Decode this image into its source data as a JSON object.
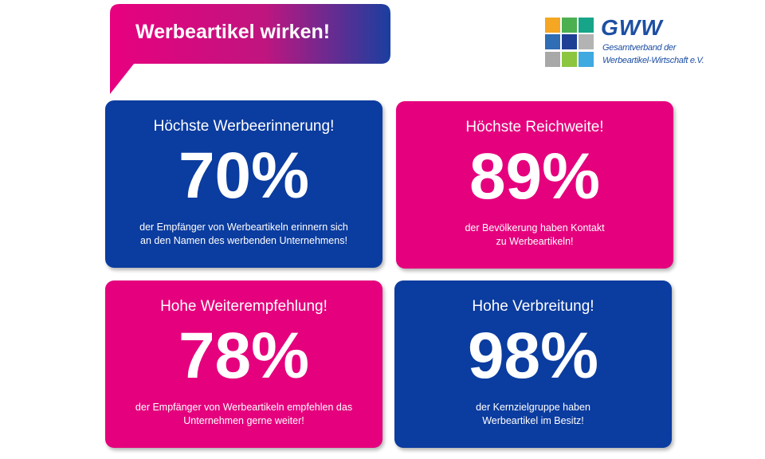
{
  "header": {
    "title": "Werbeartikel wirken!"
  },
  "logo": {
    "name": "GWW",
    "subtitle_lines": [
      "Gesamtverband der",
      "Werbeartikel-Wirtschaft e.V."
    ]
  },
  "cards": [
    {
      "heading": "Höchste Werbeerinnerung!",
      "stat": "70%",
      "lines": [
        "der Empfänger von Werbeartikeln erinnern sich",
        "an den Namen des werbenden Unternehmens!"
      ]
    },
    {
      "heading": "Höchste Reichweite!",
      "stat": "89%",
      "lines": [
        "der Bevölkerung haben Kontakt",
        "zu Werbeartikeln!"
      ]
    },
    {
      "heading": "Hohe Weiterempfehlung!",
      "stat": "78%",
      "lines": [
        "der Empfänger von Werbeartikeln empfehlen das",
        "Unternehmen gerne weiter!"
      ]
    },
    {
      "heading": "Hohe Verbreitung!",
      "stat": "98%",
      "lines": [
        "der Kernzielgruppe haben",
        "Werbeartikel im Besitz!"
      ]
    }
  ]
}
